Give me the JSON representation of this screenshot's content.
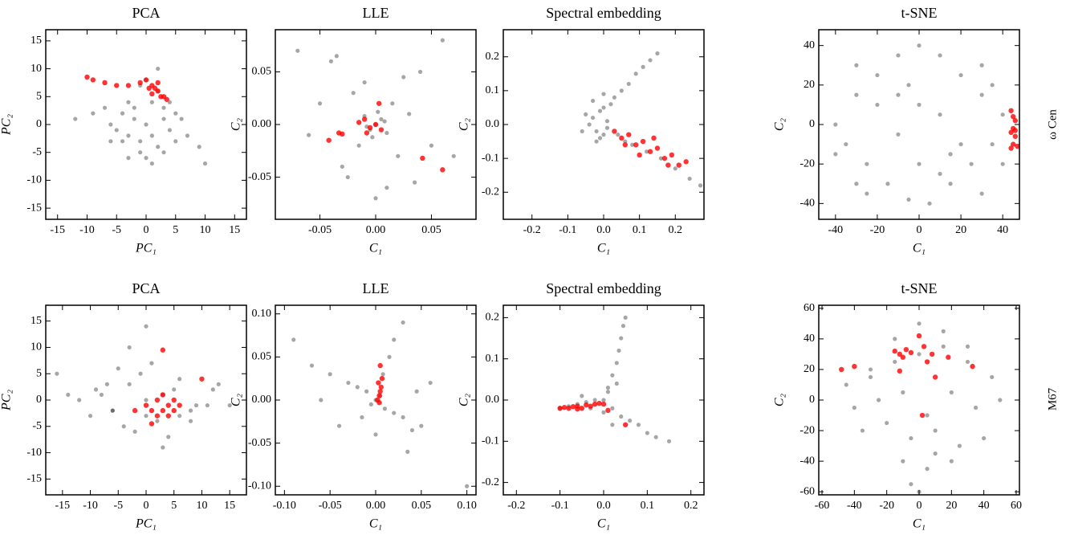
{
  "row_labels": [
    "ω Cen",
    "M67"
  ],
  "chart_data": [
    {
      "type": "scatter",
      "title": "PCA",
      "xlabel": "PC₁",
      "ylabel": "PC₂",
      "xlim": [
        -17,
        17
      ],
      "ylim": [
        -17,
        17
      ],
      "xticks": [
        -15,
        -10,
        -5,
        0,
        5,
        10,
        15
      ],
      "yticks": [
        -15,
        -10,
        -5,
        0,
        5,
        10,
        15
      ],
      "series": [
        {
          "color": "#000000",
          "alpha": 0.35,
          "x": [
            -6,
            -4,
            -3,
            -2,
            -1,
            0,
            1,
            2,
            3,
            4,
            5,
            -5,
            -3,
            -1,
            1,
            3,
            5,
            -2,
            0,
            2,
            -4,
            4,
            -7,
            7,
            -9,
            9,
            -1,
            1,
            0,
            -3,
            3,
            -6,
            6,
            -12,
            10,
            2
          ],
          "values": [
            0,
            2,
            -2,
            3,
            -3,
            0,
            4,
            -4,
            1,
            -1,
            2,
            -1,
            4,
            -5,
            -2,
            3,
            -3,
            1,
            -6,
            6,
            -3,
            4,
            3,
            -2,
            2,
            -4,
            7,
            -7,
            8,
            -6,
            -5,
            -3,
            1,
            1,
            -7,
            10
          ]
        },
        {
          "color": "#ff0000",
          "alpha": 0.8,
          "x": [
            -10,
            -9,
            -7,
            -5,
            -3,
            -1,
            0,
            1,
            2,
            2.5,
            3,
            1.5,
            0.5,
            2,
            3.5,
            1
          ],
          "values": [
            8.5,
            8,
            7.5,
            7,
            7,
            7.5,
            8,
            7,
            6,
            5,
            5,
            6.5,
            6.5,
            7.5,
            4.5,
            5.5
          ]
        }
      ]
    },
    {
      "type": "scatter",
      "title": "LLE",
      "xlabel": "C₁",
      "ylabel": "C₂",
      "xlim": [
        -0.09,
        0.09
      ],
      "ylim": [
        -0.09,
        0.09
      ],
      "xticks": [
        -0.05,
        {
          "value": 0,
          "label": "0.00"
        },
        0.05
      ],
      "yticks": [
        -0.05,
        {
          "value": 0,
          "label": "0.00"
        },
        0.05
      ],
      "series": [
        {
          "color": "#000000",
          "alpha": 0.35,
          "x": [
            0,
            0.005,
            -0.005,
            0.01,
            -0.01,
            0.002,
            -0.003,
            0.008,
            -0.008,
            0.015,
            -0.015,
            0.02,
            -0.02,
            0.03,
            -0.03,
            0.04,
            -0.04,
            0.05,
            -0.06,
            0.06,
            -0.07,
            0.01,
            -0.01,
            0.0,
            0.025,
            -0.025,
            0.07,
            -0.05,
            0.035,
            -0.035
          ],
          "values": [
            0,
            0.005,
            -0.005,
            -0.008,
            0.008,
            0.012,
            -0.012,
            0.003,
            -0.002,
            0.02,
            -0.02,
            -0.03,
            0.03,
            0.01,
            -0.04,
            0.05,
            0.06,
            -0.02,
            -0.01,
            0.08,
            0.07,
            -0.06,
            0.04,
            -0.07,
            0.045,
            -0.05,
            -0.03,
            0.02,
            -0.055,
            0.065
          ]
        },
        {
          "color": "#ff0000",
          "alpha": 0.8,
          "x": [
            -0.042,
            -0.033,
            -0.03,
            -0.015,
            -0.01,
            -0.005,
            0,
            0.003,
            -0.008,
            0.042,
            0.06,
            0.005
          ],
          "values": [
            -0.015,
            -0.008,
            -0.009,
            0.002,
            0.005,
            -0.003,
            0,
            0.02,
            -0.008,
            -0.032,
            -0.043,
            -0.005
          ]
        }
      ]
    },
    {
      "type": "scatter",
      "title": "Spectral embedding",
      "xlabel": "C₁",
      "ylabel": "C₂",
      "xlim": [
        -0.28,
        0.28
      ],
      "ylim": [
        -0.28,
        0.28
      ],
      "xticks": [
        -0.2,
        -0.1,
        {
          "value": 0,
          "label": "0.0"
        },
        0.1,
        0.2
      ],
      "yticks": [
        -0.2,
        -0.1,
        {
          "value": 0,
          "label": "0.0"
        },
        0.1,
        0.2
      ],
      "series": [
        {
          "color": "#000000",
          "alpha": 0.35,
          "x": [
            -0.04,
            -0.03,
            -0.02,
            -0.01,
            0,
            0.01,
            -0.05,
            -0.02,
            0,
            0.02,
            0.03,
            0.05,
            0.07,
            0.09,
            0.11,
            0.13,
            0.15,
            0.04,
            0.06,
            -0.03,
            -0.01,
            0.01,
            0.08,
            0.12,
            0.16,
            0.2,
            0.24,
            0.27,
            -0.06,
            0
          ],
          "values": [
            0,
            0.02,
            -0.02,
            0.04,
            -0.03,
            0.01,
            0.03,
            -0.05,
            0.05,
            0.06,
            0.08,
            0.1,
            0.12,
            0.15,
            0.17,
            0.19,
            0.21,
            -0.03,
            -0.05,
            0.07,
            -0.04,
            -0.01,
            -0.06,
            -0.08,
            -0.1,
            -0.13,
            -0.16,
            -0.18,
            -0.02,
            0.09
          ]
        },
        {
          "color": "#ff0000",
          "alpha": 0.8,
          "x": [
            0.03,
            0.05,
            0.07,
            0.09,
            0.11,
            0.13,
            0.15,
            0.17,
            0.19,
            0.21,
            0.1,
            0.14,
            0.06,
            0.18,
            0.23
          ],
          "values": [
            -0.02,
            -0.04,
            -0.03,
            -0.06,
            -0.05,
            -0.08,
            -0.07,
            -0.1,
            -0.09,
            -0.12,
            -0.09,
            -0.04,
            -0.06,
            -0.12,
            -0.11
          ]
        }
      ]
    },
    {
      "type": "scatter",
      "title": "t-SNE",
      "xlabel": "C₁",
      "ylabel": "C₂",
      "xlim": [
        -48,
        48
      ],
      "ylim": [
        -48,
        48
      ],
      "xticks": [
        -40,
        -20,
        0,
        20,
        40
      ],
      "yticks": [
        -40,
        -20,
        0,
        20,
        40
      ],
      "series": [
        {
          "color": "#000000",
          "alpha": 0.35,
          "x": [
            -40,
            -30,
            -20,
            -10,
            0,
            10,
            20,
            30,
            40,
            -35,
            -25,
            -15,
            -5,
            5,
            15,
            25,
            35,
            -40,
            -30,
            -20,
            -10,
            0,
            10,
            20,
            30,
            40,
            -25,
            -5,
            15,
            35,
            -10,
            10,
            0,
            -30,
            30
          ],
          "values": [
            0,
            15,
            25,
            35,
            40,
            35,
            25,
            15,
            5,
            -10,
            -20,
            -30,
            -38,
            -40,
            -30,
            -20,
            -10,
            -15,
            -30,
            10,
            -5,
            -20,
            5,
            -10,
            30,
            -20,
            -35,
            20,
            -15,
            20,
            15,
            -25,
            10,
            30,
            -35
          ]
        },
        {
          "color": "#ff0000",
          "alpha": 0.8,
          "x": [
            44,
            45,
            46,
            45,
            44,
            46,
            45,
            47,
            44,
            46
          ],
          "values": [
            7,
            4,
            2,
            -2,
            -4,
            -3,
            -10,
            -11,
            -12,
            -6
          ]
        }
      ]
    },
    {
      "type": "scatter",
      "title": "PCA",
      "xlabel": "PC₁",
      "ylabel": "PC₂",
      "xlim": [
        -18,
        18
      ],
      "ylim": [
        -18,
        18
      ],
      "xticks": [
        -15,
        -10,
        -5,
        0,
        5,
        10,
        15
      ],
      "yticks": [
        -15,
        -10,
        -5,
        0,
        5,
        10,
        15
      ],
      "series": [
        {
          "color": "#000000",
          "alpha": 0.35,
          "x": [
            -12,
            -9,
            -6,
            -3,
            0,
            3,
            6,
            9,
            12,
            -10,
            -7,
            -4,
            -1,
            2,
            5,
            8,
            11,
            -5,
            -2,
            1,
            4,
            -8,
            8,
            -14,
            15,
            -3,
            3,
            0,
            -6,
            6,
            0,
            -16,
            13
          ],
          "values": [
            0,
            2,
            -2,
            3,
            -3,
            1,
            4,
            -1,
            2,
            -3,
            3,
            -5,
            5,
            -4,
            2,
            -2,
            -1,
            6,
            -6,
            7,
            -7,
            1,
            -4,
            1,
            -1,
            10,
            -9,
            14,
            -2,
            -3,
            0,
            5,
            3
          ]
        },
        {
          "color": "#ff0000",
          "alpha": 0.8,
          "x": [
            0,
            1,
            2,
            3,
            4,
            5,
            6,
            2,
            3,
            4,
            -2,
            3,
            10,
            1,
            5
          ],
          "values": [
            -1,
            -2,
            -3,
            -2,
            -1,
            -2,
            -1,
            0,
            1,
            -3,
            -2,
            9.5,
            4,
            -4.5,
            0
          ]
        }
      ]
    },
    {
      "type": "scatter",
      "title": "LLE",
      "xlabel": "C₁",
      "ylabel": "C₂",
      "xlim": [
        -0.11,
        0.11
      ],
      "ylim": [
        -0.11,
        0.11
      ],
      "xticks": [
        {
          "value": -0.1,
          "label": "-0.10"
        },
        -0.05,
        {
          "value": 0,
          "label": "0.00"
        },
        0.05,
        {
          "value": 0.1,
          "label": "0.10"
        }
      ],
      "yticks": [
        {
          "value": -0.1,
          "label": "-0.10"
        },
        -0.05,
        {
          "value": 0,
          "label": "0.00"
        },
        0.05,
        {
          "value": 0.1,
          "label": "0.10"
        }
      ],
      "series": [
        {
          "color": "#000000",
          "alpha": 0.35,
          "x": [
            0,
            0.005,
            -0.005,
            0.01,
            -0.01,
            0.02,
            -0.02,
            0.03,
            -0.03,
            0.04,
            -0.05,
            -0.07,
            0.05,
            0.06,
            -0.04,
            0.015,
            0.02,
            0.03,
            0.1,
            -0.09,
            0.035,
            -0.015,
            0.008,
            -0.06,
            0.0,
            0.045
          ],
          "values": [
            0,
            0.005,
            -0.005,
            -0.01,
            0.01,
            -0.015,
            0.015,
            -0.02,
            0.02,
            -0.035,
            0.03,
            0.04,
            -0.03,
            0.02,
            -0.03,
            0.05,
            0.07,
            0.09,
            -0.1,
            0.07,
            -0.06,
            -0.02,
            0.03,
            0.0,
            -0.04,
            0.01
          ]
        },
        {
          "color": "#ff0000",
          "alpha": 0.8,
          "x": [
            0.002,
            0.004,
            0.005,
            0.006,
            0.003,
            0.007,
            0.005,
            0.004
          ],
          "values": [
            0,
            0.005,
            0.01,
            0.015,
            0.02,
            0.025,
            0.04,
            -0.003
          ]
        }
      ]
    },
    {
      "type": "scatter",
      "title": "Spectral embedding",
      "xlabel": "C₁",
      "ylabel": "C₂",
      "xlim": [
        -0.23,
        0.23
      ],
      "ylim": [
        -0.23,
        0.23
      ],
      "xticks": [
        -0.2,
        -0.1,
        {
          "value": 0,
          "label": "0.0"
        },
        0.1,
        0.2
      ],
      "yticks": [
        -0.2,
        -0.1,
        {
          "value": 0,
          "label": "0.0"
        },
        0.1,
        0.2
      ],
      "series": [
        {
          "color": "#000000",
          "alpha": 0.35,
          "x": [
            -0.1,
            -0.08,
            -0.06,
            -0.04,
            -0.02,
            0,
            0.01,
            0.02,
            0.03,
            0.035,
            0.04,
            0.045,
            0.05,
            0.02,
            0.04,
            0.06,
            0.08,
            0.1,
            0.12,
            0.15,
            -0.05,
            -0.03,
            0.01,
            0.03,
            0.0,
            0.02
          ],
          "values": [
            -0.02,
            -0.015,
            -0.01,
            -0.005,
            0,
            0,
            0.03,
            0.06,
            0.09,
            0.12,
            0.15,
            0.18,
            0.2,
            -0.02,
            -0.04,
            -0.05,
            -0.06,
            -0.08,
            -0.09,
            -0.1,
            0.01,
            -0.02,
            0.02,
            0.04,
            -0.03,
            -0.06
          ]
        },
        {
          "color": "#ff0000",
          "alpha": 0.8,
          "x": [
            -0.1,
            -0.09,
            -0.08,
            -0.07,
            -0.06,
            -0.05,
            -0.04,
            -0.03,
            -0.02,
            -0.01,
            0,
            0.01,
            -0.06,
            0.05
          ],
          "values": [
            -0.02,
            -0.018,
            -0.02,
            -0.016,
            -0.015,
            -0.02,
            -0.012,
            -0.015,
            -0.01,
            -0.008,
            -0.01,
            -0.025,
            -0.022,
            -0.06
          ]
        }
      ]
    },
    {
      "type": "scatter",
      "title": "t-SNE",
      "xlabel": "C₁",
      "ylabel": "C₂",
      "xlim": [
        -62,
        62
      ],
      "ylim": [
        -62,
        62
      ],
      "xticks": [
        -60,
        -40,
        -20,
        0,
        20,
        40,
        60
      ],
      "yticks": [
        -60,
        -40,
        -20,
        0,
        20,
        40,
        60
      ],
      "series": [
        {
          "color": "#000000",
          "alpha": 0.35,
          "x": [
            -45,
            -30,
            -15,
            0,
            15,
            30,
            45,
            -40,
            -25,
            -10,
            5,
            20,
            35,
            50,
            -35,
            -20,
            -5,
            10,
            25,
            40,
            -30,
            -15,
            0,
            15,
            30,
            -10,
            5,
            20,
            -5,
            10,
            0
          ],
          "values": [
            10,
            20,
            25,
            30,
            35,
            25,
            15,
            -5,
            0,
            5,
            -10,
            5,
            -5,
            0,
            -20,
            -15,
            -25,
            -20,
            -30,
            -25,
            15,
            40,
            50,
            45,
            35,
            -40,
            -45,
            -40,
            -55,
            -35,
            -60
          ]
        },
        {
          "color": "#ff0000",
          "alpha": 0.8,
          "x": [
            -15,
            -12,
            -10,
            -8,
            -5,
            0,
            3,
            5,
            8,
            10,
            18,
            33,
            -48,
            -40,
            2,
            -12
          ],
          "values": [
            32,
            30,
            28,
            33,
            31,
            42,
            35,
            25,
            30,
            15,
            28,
            22,
            20,
            22,
            -10,
            19
          ]
        }
      ]
    }
  ]
}
